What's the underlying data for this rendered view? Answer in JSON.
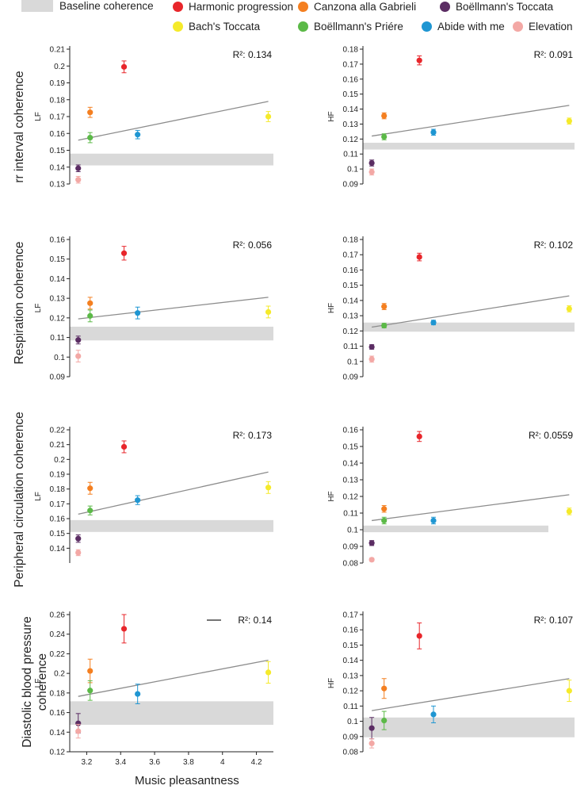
{
  "legend": {
    "baseline_label": "Baseline coherence",
    "items": [
      {
        "label": "Harmonic progression",
        "color": "#e8262b"
      },
      {
        "label": "Canzona alla Gabrieli",
        "color": "#f47f20"
      },
      {
        "label": "Boëllmann's Toccata",
        "color": "#5b2d63"
      },
      {
        "label": "Bach's Toccata",
        "color": "#f5ea2a"
      },
      {
        "label": "Boëllmann's Priére",
        "color": "#5bb947"
      },
      {
        "label": "Abide with me",
        "color": "#1f96d2"
      },
      {
        "label": "Elevation",
        "color": "#f3a8a5"
      }
    ]
  },
  "row_labels": [
    "rr interval coherence",
    "Respiration coherence",
    "Peripheral circulation coherence",
    "Diastolic blood pressure\ncoherence"
  ],
  "x_axis_label": "Music pleasantness",
  "chart_data": [
    {
      "type": "scatter",
      "row": 0,
      "ylabel": "LF",
      "r2_label": "R²: 0.134",
      "ylim": [
        0.13,
        0.21
      ],
      "yticks": [
        "0.13",
        "0.14",
        "0.15",
        "0.16",
        "0.17",
        "0.18",
        "0.19",
        "0.2",
        "0.21"
      ],
      "xlim": [
        3.1,
        4.3
      ],
      "baseline": [
        0.141,
        0.148
      ],
      "fit": [
        [
          3.15,
          0.156
        ],
        [
          4.27,
          0.179
        ]
      ],
      "points": [
        {
          "piece": "Harmonic progression",
          "x": 3.42,
          "y": 0.1995,
          "err": 0.0035
        },
        {
          "piece": "Canzona alla Gabrieli",
          "x": 3.22,
          "y": 0.1725,
          "err": 0.003
        },
        {
          "piece": "Boëllmann's Toccata",
          "x": 3.15,
          "y": 0.1393,
          "err": 0.002
        },
        {
          "piece": "Bach's Toccata",
          "x": 4.27,
          "y": 0.17,
          "err": 0.003
        },
        {
          "piece": "Boëllmann's Priére",
          "x": 3.22,
          "y": 0.1575,
          "err": 0.003
        },
        {
          "piece": "Abide with me",
          "x": 3.5,
          "y": 0.1593,
          "err": 0.0025
        },
        {
          "piece": "Elevation",
          "x": 3.15,
          "y": 0.1325,
          "err": 0.002
        }
      ]
    },
    {
      "type": "scatter",
      "row": 0,
      "ylabel": "HF",
      "r2_label": "R²: 0.091",
      "ylim": [
        0.09,
        0.18
      ],
      "yticks": [
        "0.09",
        "0.1",
        "0.11",
        "0.12",
        "0.13",
        "0.14",
        "0.15",
        "0.16",
        "0.17",
        "0.18"
      ],
      "xlim": [
        3.1,
        4.3
      ],
      "baseline": [
        0.113,
        0.1175
      ],
      "fit": [
        [
          3.15,
          0.122
        ],
        [
          4.27,
          0.1425
        ]
      ],
      "points": [
        {
          "piece": "Harmonic progression",
          "x": 3.42,
          "y": 0.1725,
          "err": 0.003
        },
        {
          "piece": "Canzona alla Gabrieli",
          "x": 3.22,
          "y": 0.1355,
          "err": 0.002
        },
        {
          "piece": "Boëllmann's Toccata",
          "x": 3.15,
          "y": 0.104,
          "err": 0.002
        },
        {
          "piece": "Bach's Toccata",
          "x": 4.27,
          "y": 0.132,
          "err": 0.002
        },
        {
          "piece": "Boëllmann's Priére",
          "x": 3.22,
          "y": 0.1215,
          "err": 0.002
        },
        {
          "piece": "Abide with me",
          "x": 3.5,
          "y": 0.1245,
          "err": 0.002
        },
        {
          "piece": "Elevation",
          "x": 3.15,
          "y": 0.098,
          "err": 0.002
        }
      ]
    },
    {
      "type": "scatter",
      "row": 1,
      "ylabel": "LF",
      "r2_label": "R²: 0.056",
      "ylim": [
        0.09,
        0.16
      ],
      "yticks": [
        "0.09",
        "0.1",
        "0.11",
        "0.12",
        "0.13",
        "0.14",
        "0.15",
        "0.16"
      ],
      "xlim": [
        3.1,
        4.3
      ],
      "baseline": [
        0.1085,
        0.1155
      ],
      "fit": [
        [
          3.15,
          0.1195
        ],
        [
          4.27,
          0.1305
        ]
      ],
      "points": [
        {
          "piece": "Harmonic progression",
          "x": 3.42,
          "y": 0.153,
          "err": 0.0035
        },
        {
          "piece": "Canzona alla Gabrieli",
          "x": 3.22,
          "y": 0.1275,
          "err": 0.003
        },
        {
          "piece": "Boëllmann's Toccata",
          "x": 3.15,
          "y": 0.1087,
          "err": 0.002
        },
        {
          "piece": "Bach's Toccata",
          "x": 4.27,
          "y": 0.123,
          "err": 0.003
        },
        {
          "piece": "Boëllmann's Priére",
          "x": 3.22,
          "y": 0.121,
          "err": 0.003
        },
        {
          "piece": "Abide with me",
          "x": 3.5,
          "y": 0.1225,
          "err": 0.003
        },
        {
          "piece": "Elevation",
          "x": 3.15,
          "y": 0.1005,
          "err": 0.003
        }
      ]
    },
    {
      "type": "scatter",
      "row": 1,
      "ylabel": "HF",
      "r2_label": "R²: 0.102",
      "ylim": [
        0.09,
        0.18
      ],
      "yticks": [
        "0.09",
        "0.1",
        "0.11",
        "0.12",
        "0.13",
        "0.14",
        "0.15",
        "0.16",
        "0.17",
        "0.18"
      ],
      "xlim": [
        3.1,
        4.3
      ],
      "baseline": [
        0.1195,
        0.1255
      ],
      "fit": [
        [
          3.15,
          0.1225
        ],
        [
          4.27,
          0.143
        ]
      ],
      "points": [
        {
          "piece": "Harmonic progression",
          "x": 3.42,
          "y": 0.1685,
          "err": 0.0025
        },
        {
          "piece": "Canzona alla Gabrieli",
          "x": 3.22,
          "y": 0.136,
          "err": 0.002
        },
        {
          "piece": "Boëllmann's Toccata",
          "x": 3.15,
          "y": 0.1095,
          "err": 0.0015
        },
        {
          "piece": "Bach's Toccata",
          "x": 4.27,
          "y": 0.1345,
          "err": 0.002
        },
        {
          "piece": "Boëllmann's Priére",
          "x": 3.22,
          "y": 0.1235,
          "err": 0.0015
        },
        {
          "piece": "Abide with me",
          "x": 3.5,
          "y": 0.1255,
          "err": 0.0015
        },
        {
          "piece": "Elevation",
          "x": 3.15,
          "y": 0.1015,
          "err": 0.002
        }
      ]
    },
    {
      "type": "scatter",
      "row": 2,
      "ylabel": "LF",
      "r2_label": "R²: 0.173",
      "ylim": [
        0.13,
        0.22
      ],
      "yticks": [
        "0.14",
        "0.15",
        "0.16",
        "0.17",
        "0.18",
        "0.19",
        "0.2",
        "0.21",
        "0.22"
      ],
      "xlim": [
        3.1,
        4.3
      ],
      "baseline": [
        0.151,
        0.159
      ],
      "fit": [
        [
          3.15,
          0.163
        ],
        [
          4.27,
          0.1915
        ]
      ],
      "points": [
        {
          "piece": "Harmonic progression",
          "x": 3.42,
          "y": 0.2085,
          "err": 0.004
        },
        {
          "piece": "Canzona alla Gabrieli",
          "x": 3.22,
          "y": 0.1805,
          "err": 0.004
        },
        {
          "piece": "Boëllmann's Toccata",
          "x": 3.15,
          "y": 0.1465,
          "err": 0.0025
        },
        {
          "piece": "Bach's Toccata",
          "x": 4.27,
          "y": 0.181,
          "err": 0.004
        },
        {
          "piece": "Boëllmann's Priére",
          "x": 3.22,
          "y": 0.1655,
          "err": 0.003
        },
        {
          "piece": "Abide with me",
          "x": 3.5,
          "y": 0.1725,
          "err": 0.003
        },
        {
          "piece": "Elevation",
          "x": 3.15,
          "y": 0.137,
          "err": 0.002
        }
      ]
    },
    {
      "type": "scatter",
      "row": 2,
      "ylabel": "HF",
      "r2_label": "R²: 0.0559",
      "ylim": [
        0.08,
        0.16
      ],
      "yticks": [
        "0.08",
        "0.09",
        "0.1",
        "0.11",
        "0.12",
        "0.13",
        "0.14",
        "0.15",
        "0.16"
      ],
      "xlim": [
        3.1,
        4.3
      ],
      "baseline": [
        0.0985,
        0.1025
      ],
      "fit": [
        [
          3.15,
          0.1055
        ],
        [
          4.27,
          0.121
        ]
      ],
      "points": [
        {
          "piece": "Harmonic progression",
          "x": 3.42,
          "y": 0.156,
          "err": 0.003
        },
        {
          "piece": "Canzona alla Gabrieli",
          "x": 3.22,
          "y": 0.1125,
          "err": 0.002
        },
        {
          "piece": "Boëllmann's Toccata",
          "x": 3.15,
          "y": 0.092,
          "err": 0.0015
        },
        {
          "piece": "Bach's Toccata",
          "x": 4.27,
          "y": 0.111,
          "err": 0.002
        },
        {
          "piece": "Boëllmann's Priére",
          "x": 3.22,
          "y": 0.1055,
          "err": 0.002
        },
        {
          "piece": "Abide with me",
          "x": 3.5,
          "y": 0.1055,
          "err": 0.002
        },
        {
          "piece": "Elevation",
          "x": 3.15,
          "y": 0.082,
          "err": 0.001
        }
      ]
    },
    {
      "type": "scatter",
      "row": 3,
      "ylabel": "LF",
      "r2_label": "R²: 0.14",
      "ylim": [
        0.12,
        0.26
      ],
      "yticks": [
        "0.12",
        "0.14",
        "0.16",
        "0.18",
        "0.2",
        "0.22",
        "0.24",
        "0.26"
      ],
      "xlim": [
        3.1,
        4.3
      ],
      "xticks": [
        "3.2",
        "3.4",
        "3.6",
        "3.8",
        "4",
        "4.2"
      ],
      "xtick_values": [
        3.2,
        3.4,
        3.6,
        3.8,
        4.0,
        4.2
      ],
      "baseline": [
        0.1475,
        0.1715
      ],
      "fit": [
        [
          3.15,
          0.1765
        ],
        [
          4.27,
          0.2135
        ]
      ],
      "points": [
        {
          "piece": "Harmonic progression",
          "x": 3.42,
          "y": 0.2455,
          "err": 0.0145
        },
        {
          "piece": "Canzona alla Gabrieli",
          "x": 3.22,
          "y": 0.2025,
          "err": 0.012
        },
        {
          "piece": "Boëllmann's Toccata",
          "x": 3.15,
          "y": 0.149,
          "err": 0.01
        },
        {
          "piece": "Bach's Toccata",
          "x": 4.27,
          "y": 0.201,
          "err": 0.011
        },
        {
          "piece": "Boëllmann's Priére",
          "x": 3.22,
          "y": 0.1825,
          "err": 0.01
        },
        {
          "piece": "Abide with me",
          "x": 3.5,
          "y": 0.179,
          "err": 0.01
        },
        {
          "piece": "Elevation",
          "x": 3.15,
          "y": 0.141,
          "err": 0.007
        }
      ]
    },
    {
      "type": "scatter",
      "row": 3,
      "ylabel": "HF",
      "r2_label": "R²: 0.107",
      "ylim": [
        0.08,
        0.17
      ],
      "yticks": [
        "0.08",
        "0.09",
        "0.1",
        "0.11",
        "0.12",
        "0.13",
        "0.14",
        "0.15",
        "0.16",
        "0.17"
      ],
      "xlim": [
        3.1,
        4.3
      ],
      "baseline": [
        0.0895,
        0.1025
      ],
      "fit": [
        [
          3.15,
          0.107
        ],
        [
          4.27,
          0.128
        ]
      ],
      "points": [
        {
          "piece": "Harmonic progression",
          "x": 3.42,
          "y": 0.156,
          "err": 0.0085
        },
        {
          "piece": "Canzona alla Gabrieli",
          "x": 3.22,
          "y": 0.1215,
          "err": 0.0065
        },
        {
          "piece": "Boëllmann's Toccata",
          "x": 3.15,
          "y": 0.0955,
          "err": 0.007
        },
        {
          "piece": "Bach's Toccata",
          "x": 4.27,
          "y": 0.12,
          "err": 0.007
        },
        {
          "piece": "Boëllmann's Priére",
          "x": 3.22,
          "y": 0.1005,
          "err": 0.006
        },
        {
          "piece": "Abide with me",
          "x": 3.5,
          "y": 0.1045,
          "err": 0.0055
        },
        {
          "piece": "Elevation",
          "x": 3.15,
          "y": 0.0855,
          "err": 0.003
        }
      ]
    }
  ]
}
